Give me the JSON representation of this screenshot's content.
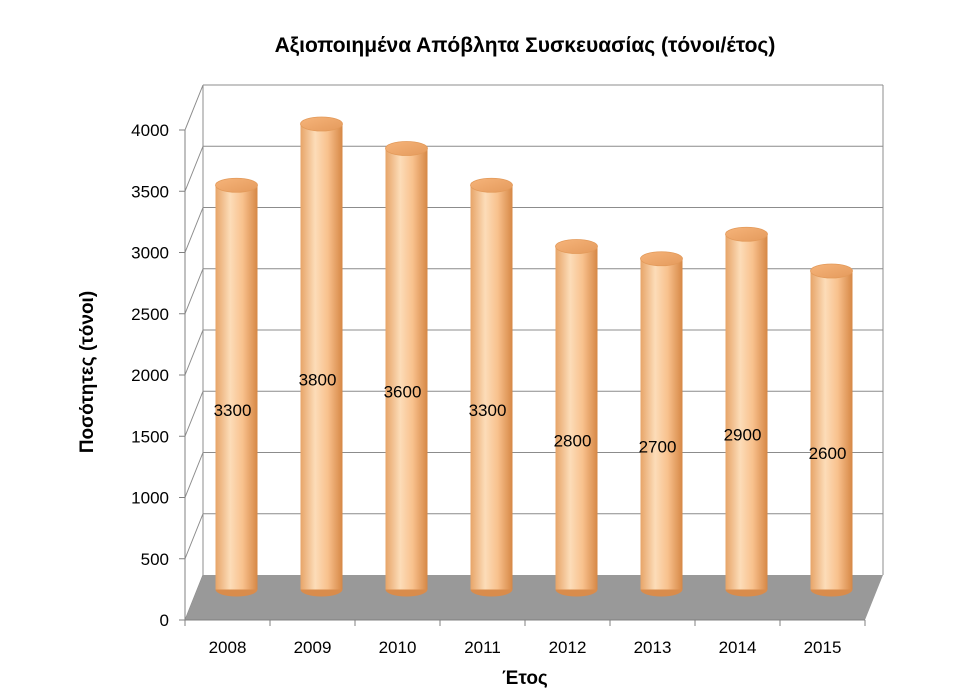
{
  "chart_data": {
    "type": "bar",
    "title": "Αξιοποιημένα Απόβλητα Συσκευασίας (τόνοι/έτος)",
    "xlabel": "Έτος",
    "ylabel": "Ποσότητες (τόνοι)",
    "categories": [
      "2008",
      "2009",
      "2010",
      "2011",
      "2012",
      "2013",
      "2014",
      "2015"
    ],
    "values": [
      3300,
      3800,
      3600,
      3300,
      2800,
      2700,
      2900,
      2600
    ],
    "data_labels": [
      "3300",
      "3800",
      "3600",
      "3300",
      "2800",
      "2700",
      "2900",
      "2600"
    ],
    "ylim": [
      0,
      4000
    ],
    "yticks": [
      "0",
      "500",
      "1000",
      "1500",
      "2000",
      "2500",
      "3000",
      "3500",
      "4000"
    ],
    "grid": true,
    "legend": "none",
    "colors": {
      "bar_light": "#fbd2a6",
      "bar_mid": "#f7b57a",
      "bar_dark": "#d98c4c",
      "floor": "#999999",
      "grid": "#8c8c8c"
    }
  }
}
